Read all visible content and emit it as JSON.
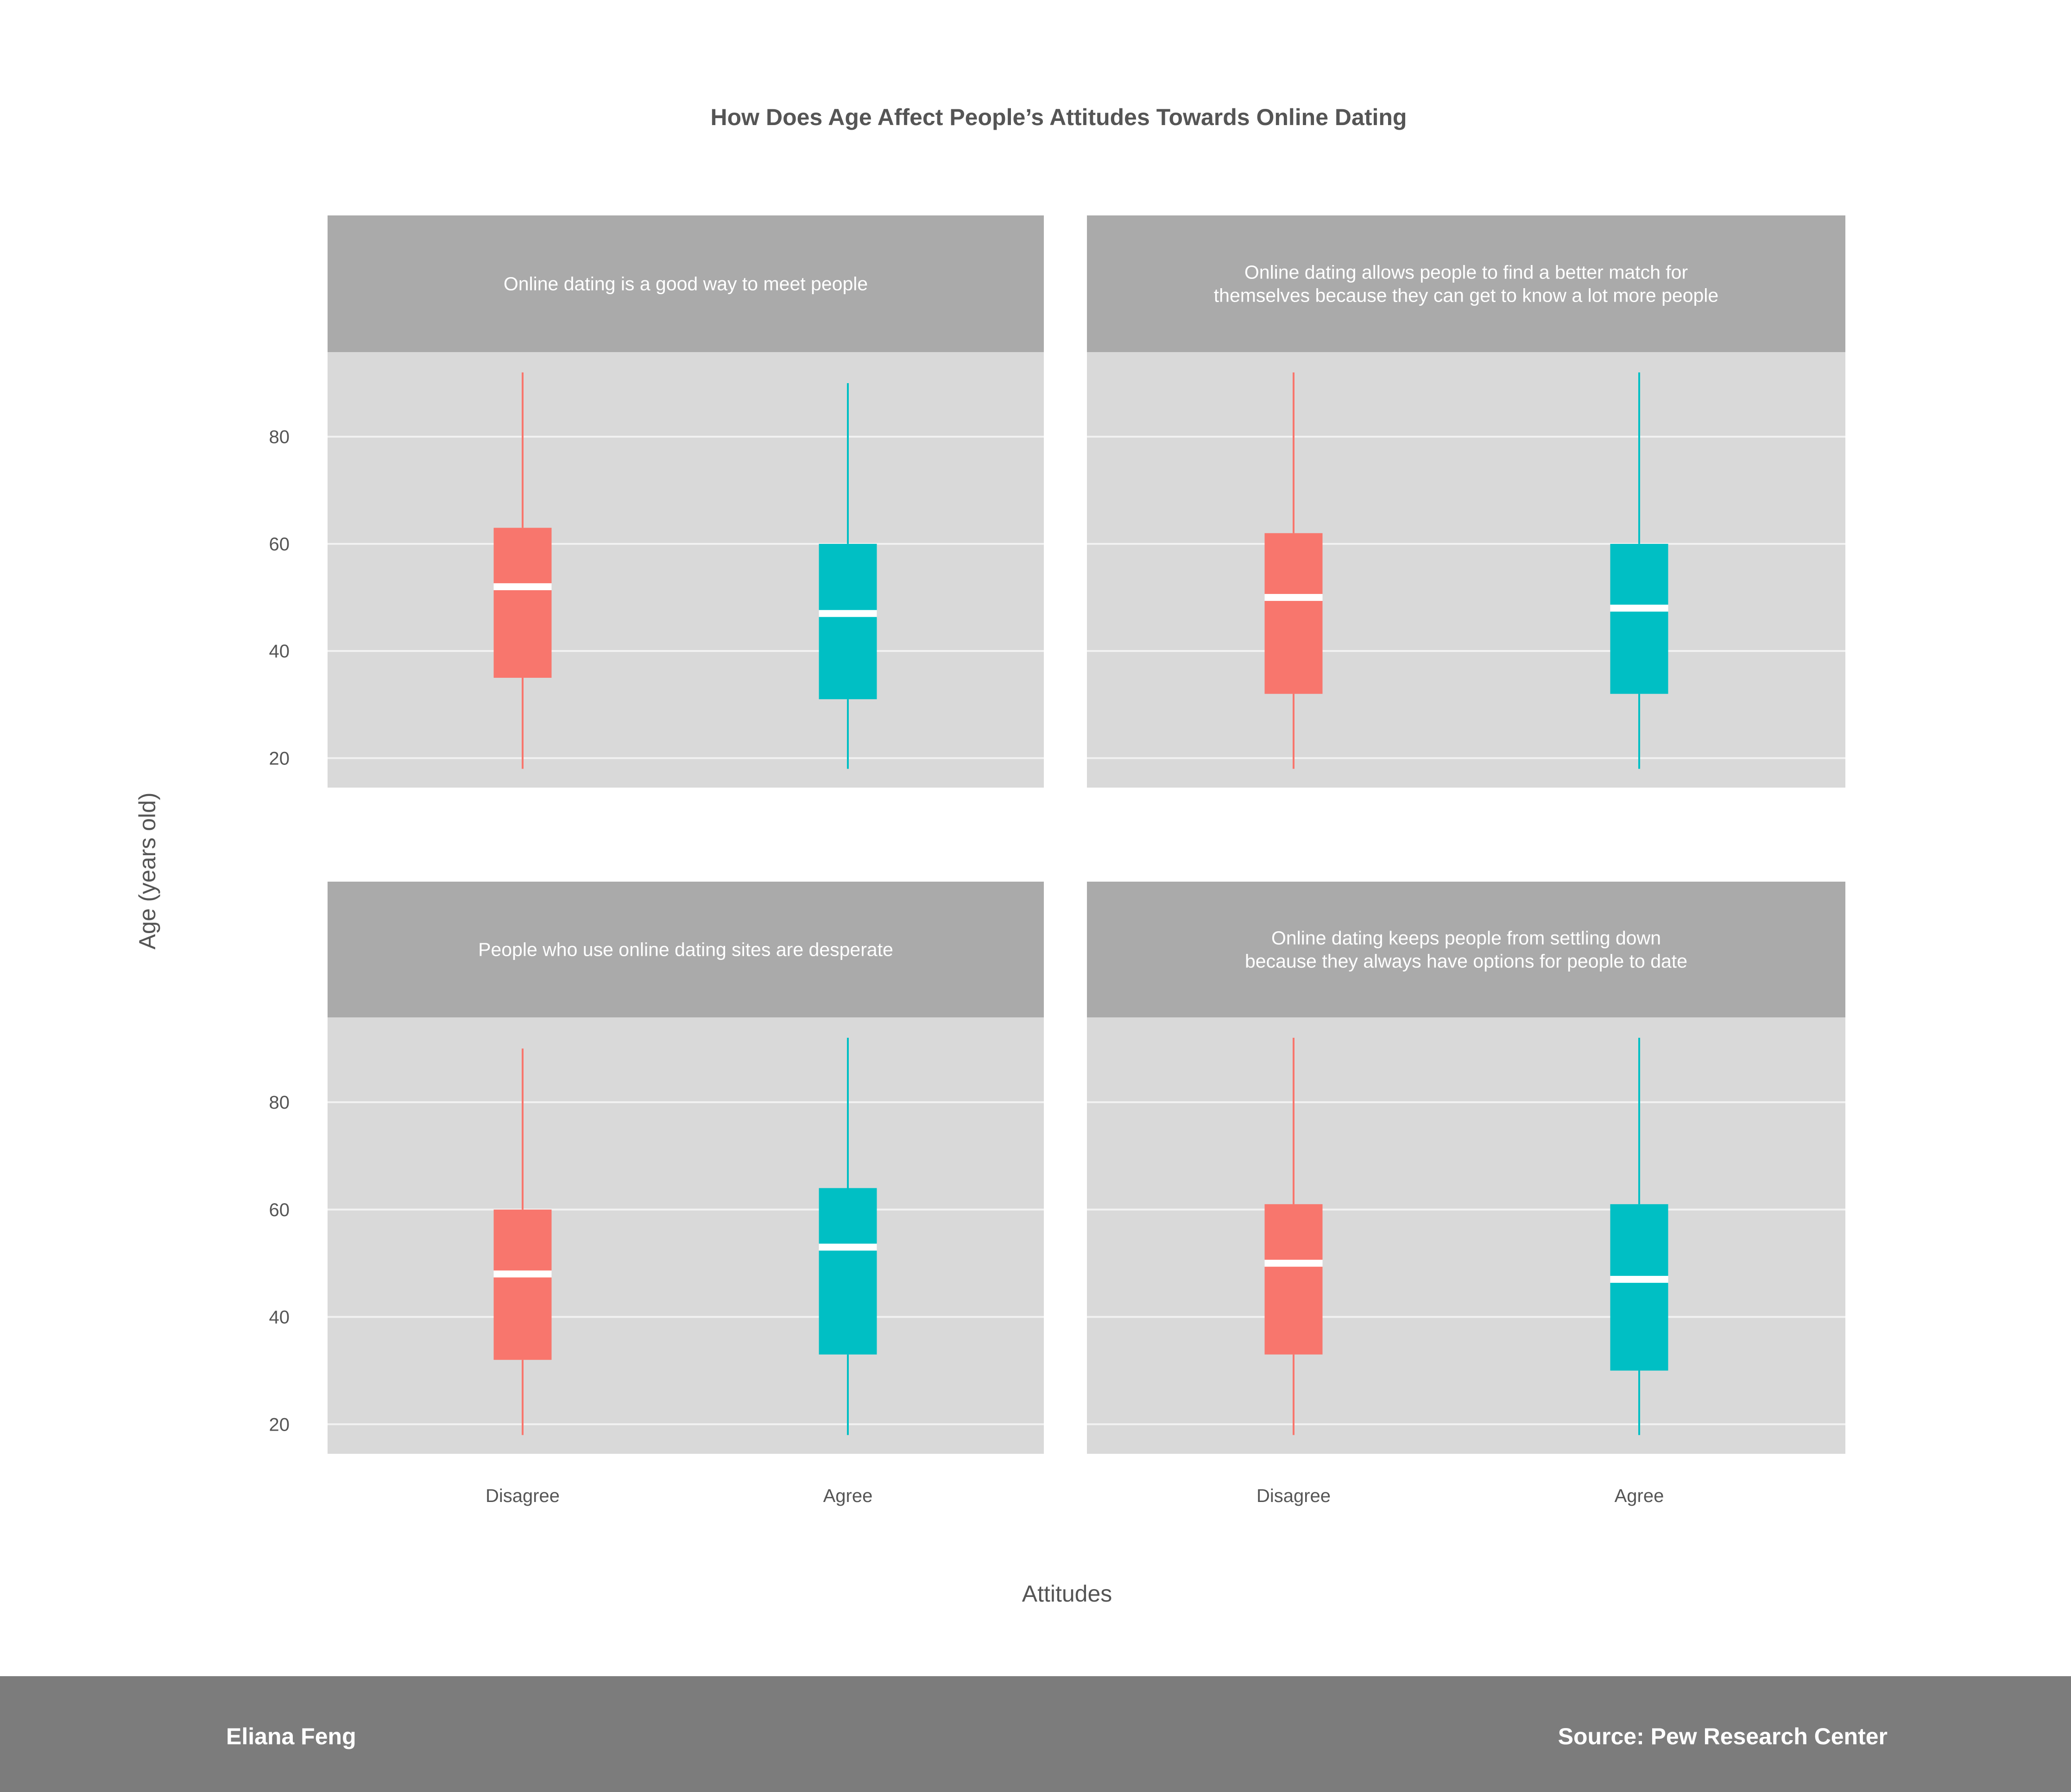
{
  "chart_data": {
    "type": "boxplot",
    "title": "How Does Age Affect People’s Attitudes Towards Online Dating",
    "xlabel": "Attitudes",
    "ylabel": "Age (years old)",
    "categories": [
      "Disagree",
      "Agree"
    ],
    "ylim": [
      14.5,
      95.8
    ],
    "yticks": [
      20,
      40,
      60,
      80
    ],
    "colors": {
      "Disagree": "#f8766d",
      "Agree": "#00bfc4"
    },
    "facet_layout": "2x2 grid",
    "panels": [
      {
        "title_lines": [
          "Online dating is a good way to meet people"
        ],
        "boxes": [
          {
            "category": "Disagree",
            "min": 18,
            "q1": 35,
            "median": 52,
            "q3": 63,
            "max": 92
          },
          {
            "category": "Agree",
            "min": 18,
            "q1": 31,
            "median": 47,
            "q3": 60,
            "max": 90
          }
        ]
      },
      {
        "title_lines": [
          "Online dating allows people to find a better match for",
          "themselves because they can get to know a lot more people"
        ],
        "boxes": [
          {
            "category": "Disagree",
            "min": 18,
            "q1": 32,
            "median": 50,
            "q3": 62,
            "max": 92
          },
          {
            "category": "Agree",
            "min": 18,
            "q1": 32,
            "median": 48,
            "q3": 60,
            "max": 92
          }
        ]
      },
      {
        "title_lines": [
          "People who use online dating sites are desperate"
        ],
        "boxes": [
          {
            "category": "Disagree",
            "min": 18,
            "q1": 32,
            "median": 48,
            "q3": 60,
            "max": 90
          },
          {
            "category": "Agree",
            "min": 18,
            "q1": 33,
            "median": 53,
            "q3": 64,
            "max": 92
          }
        ]
      },
      {
        "title_lines": [
          "Online dating keeps people from settling down",
          "because they always have options for people to date"
        ],
        "boxes": [
          {
            "category": "Disagree",
            "min": 18,
            "q1": 33,
            "median": 50,
            "q3": 61,
            "max": 92
          },
          {
            "category": "Agree",
            "min": 18,
            "q1": 30,
            "median": 47,
            "q3": 61,
            "max": 92
          }
        ]
      }
    ]
  },
  "footer": {
    "author": "Eliana Feng",
    "source": "Source: Pew Research Center"
  }
}
